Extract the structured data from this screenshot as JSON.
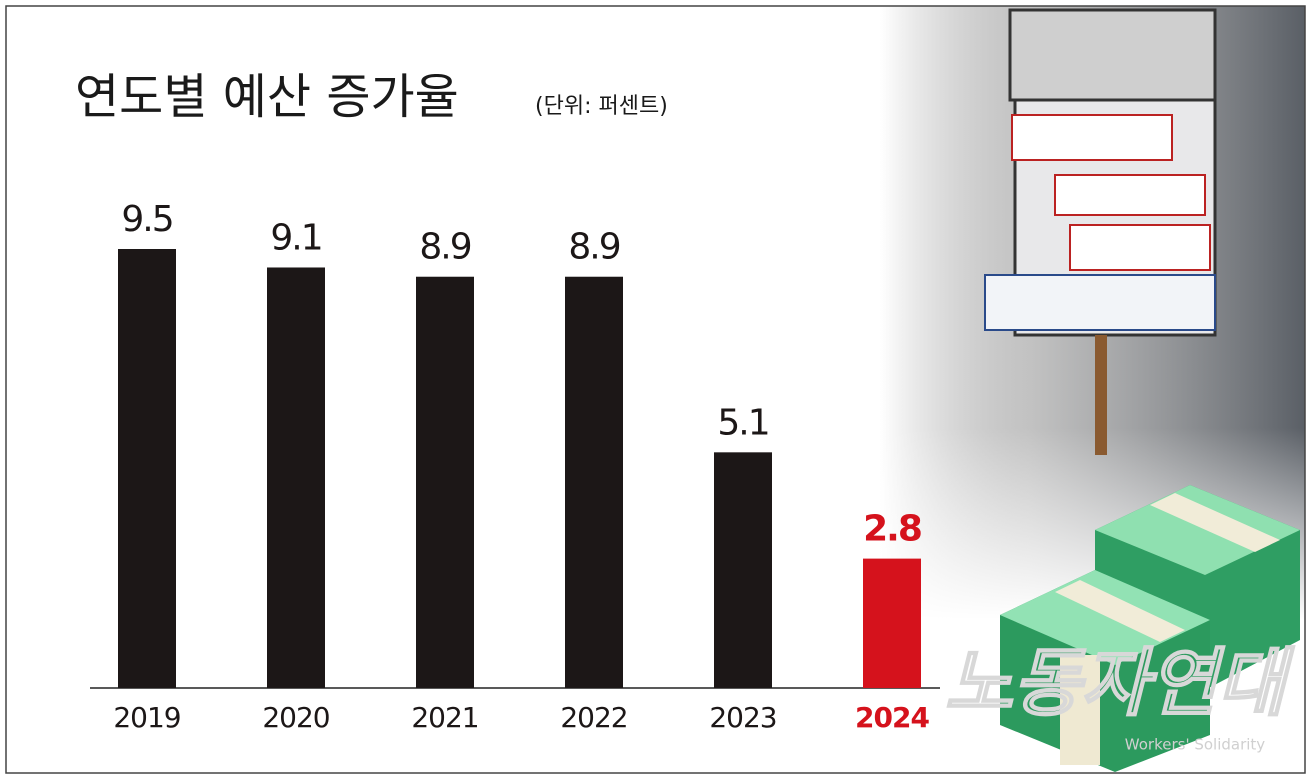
{
  "chart_data": {
    "type": "bar",
    "title": "연도별 예산 증가율",
    "subtitle": "(단위: 퍼센트)",
    "categories": [
      "2019",
      "2020",
      "2021",
      "2022",
      "2023",
      "2024"
    ],
    "values": [
      9.5,
      9.1,
      8.9,
      8.9,
      5.1,
      2.8
    ],
    "colors": [
      "#1c1717",
      "#1c1717",
      "#1c1717",
      "#1c1717",
      "#1c1717",
      "#d5121c"
    ],
    "watermark": "노동자연대",
    "watermark_subtitle": "Workers' Solidarity"
  }
}
